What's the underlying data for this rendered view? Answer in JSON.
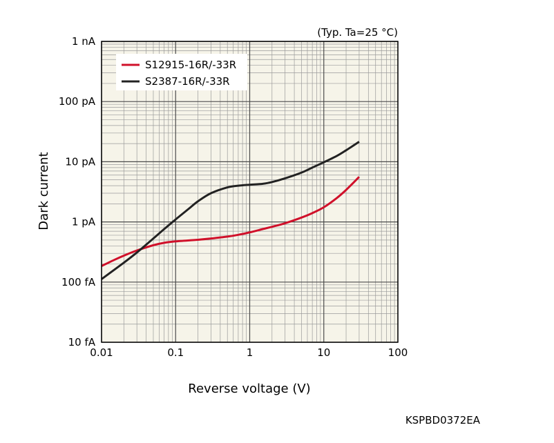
{
  "chart_data": {
    "type": "line",
    "xscale": "log",
    "yscale": "log",
    "xlabel": "Reverse voltage (V)",
    "ylabel": "Dark current",
    "condition": "(Typ. Ta=25 °C)",
    "figure_code": "KSPBD0372EA",
    "xlim": [
      0.01,
      100
    ],
    "ylim": [
      1e-14,
      1e-09
    ],
    "grid": true,
    "legend_position": "top-left",
    "x_ticks": [
      {
        "value": 0.01,
        "label": "0.01"
      },
      {
        "value": 0.1,
        "label": "0.1"
      },
      {
        "value": 1,
        "label": "1"
      },
      {
        "value": 10,
        "label": "10"
      },
      {
        "value": 100,
        "label": "100"
      }
    ],
    "y_ticks": [
      {
        "value": 1e-14,
        "label": "10 fA"
      },
      {
        "value": 1e-13,
        "label": "100 fA"
      },
      {
        "value": 1e-12,
        "label": "1 pA"
      },
      {
        "value": 1e-11,
        "label": "10 pA"
      },
      {
        "value": 1e-10,
        "label": "100 pA"
      },
      {
        "value": 1e-09,
        "label": "1 nA"
      }
    ],
    "series": [
      {
        "name": "S12915-16R/-33R",
        "color": "#d0102a",
        "points": [
          [
            0.01,
            1.85e-13
          ],
          [
            0.015,
            2.35e-13
          ],
          [
            0.02,
            2.75e-13
          ],
          [
            0.03,
            3.35e-13
          ],
          [
            0.05,
            4.1e-13
          ],
          [
            0.07,
            4.5e-13
          ],
          [
            0.1,
            4.75e-13
          ],
          [
            0.2,
            5.05e-13
          ],
          [
            0.3,
            5.3e-13
          ],
          [
            0.5,
            5.7e-13
          ],
          [
            0.7,
            6.1e-13
          ],
          [
            1,
            6.7e-13
          ],
          [
            1.5,
            7.6e-13
          ],
          [
            2,
            8.3e-13
          ],
          [
            3,
            9.5e-13
          ],
          [
            5,
            1.18e-12
          ],
          [
            7,
            1.4e-12
          ],
          [
            10,
            1.75e-12
          ],
          [
            15,
            2.5e-12
          ],
          [
            20,
            3.4e-12
          ],
          [
            30,
            5.6e-12
          ]
        ]
      },
      {
        "name": "S2387-16R/-33R",
        "color": "#222222",
        "points": [
          [
            0.01,
            1.12e-13
          ],
          [
            0.02,
            2.1e-13
          ],
          [
            0.03,
            3.1e-13
          ],
          [
            0.05,
            5.3e-13
          ],
          [
            0.07,
            7.6e-13
          ],
          [
            0.1,
            1.1e-12
          ],
          [
            0.15,
            1.65e-12
          ],
          [
            0.2,
            2.2e-12
          ],
          [
            0.3,
            3e-12
          ],
          [
            0.5,
            3.75e-12
          ],
          [
            0.7,
            4e-12
          ],
          [
            1,
            4.15e-12
          ],
          [
            1.5,
            4.3e-12
          ],
          [
            2,
            4.6e-12
          ],
          [
            3,
            5.3e-12
          ],
          [
            5,
            6.6e-12
          ],
          [
            7,
            8e-12
          ],
          [
            10,
            9.8e-12
          ],
          [
            15,
            1.25e-11
          ],
          [
            20,
            1.55e-11
          ],
          [
            30,
            2.15e-11
          ]
        ]
      }
    ]
  }
}
